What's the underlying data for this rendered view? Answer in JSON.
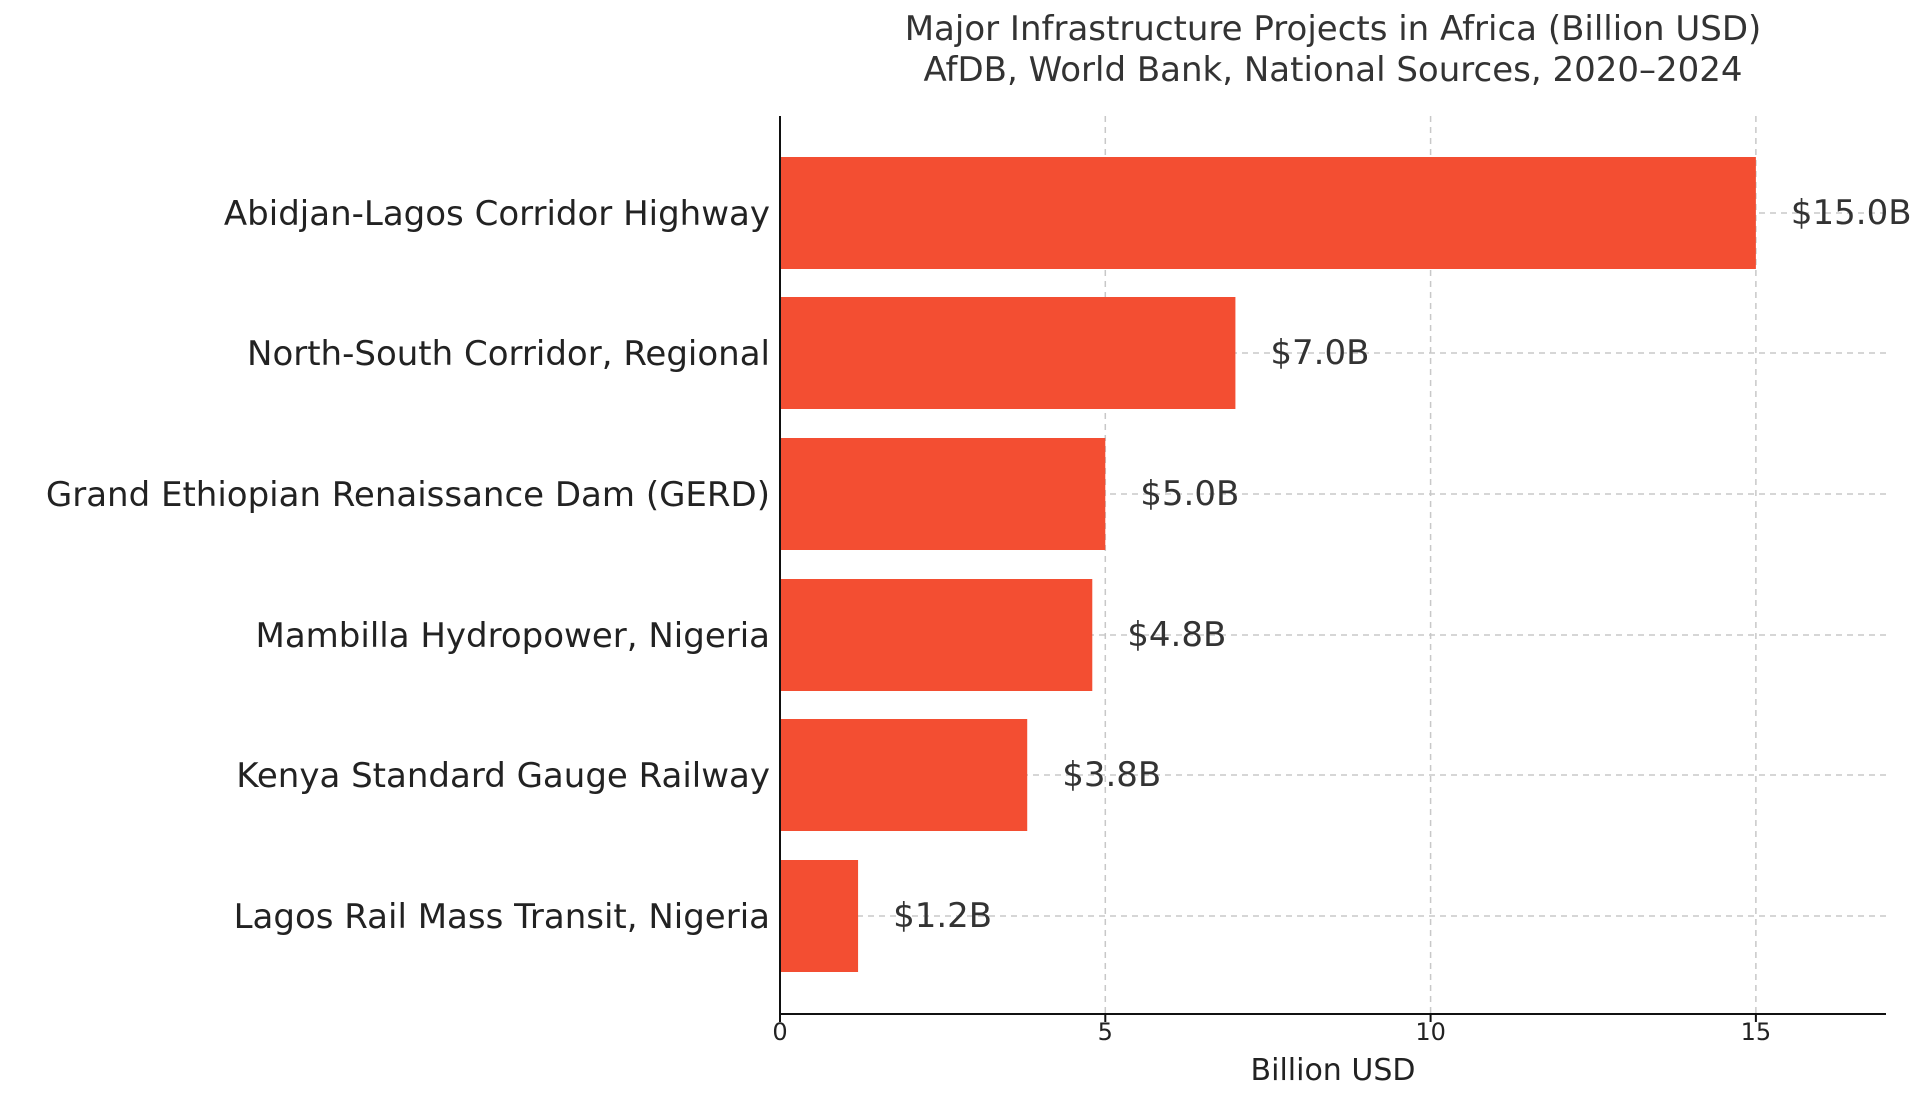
{
  "chart_data": {
    "type": "bar",
    "orientation": "horizontal",
    "title": "Major Infrastructure Projects in Africa (Billion USD)",
    "subtitle": "AfDB, World Bank, National Sources, 2020–2024",
    "categories": [
      "Abidjan-Lagos Corridor Highway",
      "North-South Corridor, Regional",
      "Grand Ethiopian Renaissance Dam (GERD)",
      "Mambilla Hydropower, Nigeria",
      "Kenya Standard Gauge Railway",
      "Lagos Rail Mass Transit, Nigeria"
    ],
    "values": [
      15.0,
      7.0,
      5.0,
      4.8,
      3.8,
      1.2
    ],
    "value_labels": [
      "$15.0B",
      "$7.0B",
      "$5.0B",
      "$4.8B",
      "$3.8B",
      "$1.2B"
    ],
    "xlabel": "Billion USD",
    "ylabel": "",
    "xlim": [
      0,
      17
    ],
    "x_ticks": [
      0,
      5,
      10,
      15
    ],
    "x_tick_labels": [
      "0",
      "5",
      "10",
      "15"
    ],
    "grid": true,
    "bar_color": "#f34e32",
    "text_color": "#333333"
  }
}
